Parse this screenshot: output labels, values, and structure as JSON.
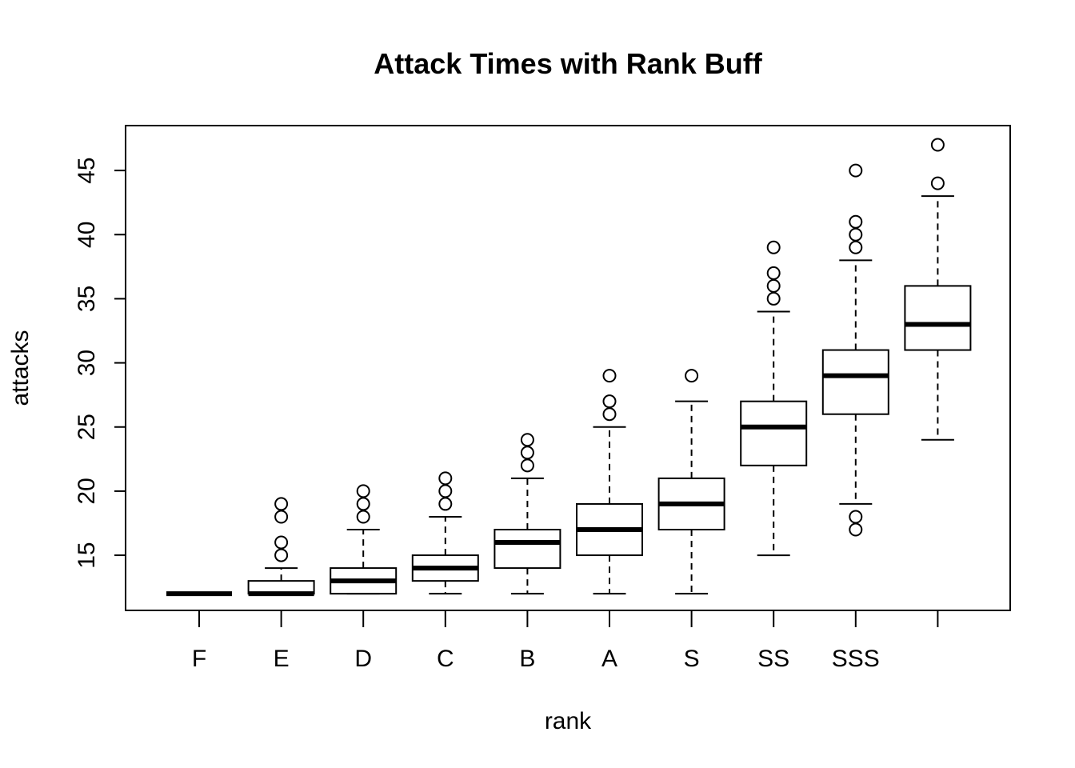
{
  "chart_data": {
    "type": "boxplot",
    "title": "Attack Times with Rank Buff",
    "xlabel": "rank",
    "ylabel": "attacks",
    "categories": [
      "F",
      "E",
      "D",
      "C",
      "B",
      "A",
      "S",
      "SS",
      "SSS",
      ""
    ],
    "y_ticks": [
      15,
      20,
      25,
      30,
      35,
      40,
      45
    ],
    "ylim": [
      10.7,
      48.5
    ],
    "grid": false,
    "boxes": [
      {
        "category": "F",
        "whisker_low": 12,
        "q1": 12,
        "median": 12,
        "q3": 12,
        "whisker_high": 12,
        "outliers": []
      },
      {
        "category": "E",
        "whisker_low": 12,
        "q1": 12,
        "median": 12,
        "q3": 13,
        "whisker_high": 14,
        "outliers": [
          15,
          16,
          18,
          19
        ]
      },
      {
        "category": "D",
        "whisker_low": 12,
        "q1": 12,
        "median": 13,
        "q3": 14,
        "whisker_high": 17,
        "outliers": [
          18,
          19,
          20
        ]
      },
      {
        "category": "C",
        "whisker_low": 12,
        "q1": 13,
        "median": 14,
        "q3": 15,
        "whisker_high": 18,
        "outliers": [
          19,
          20,
          21
        ]
      },
      {
        "category": "B",
        "whisker_low": 12,
        "q1": 14,
        "median": 16,
        "q3": 17,
        "whisker_high": 21,
        "outliers": [
          22,
          23,
          24
        ]
      },
      {
        "category": "A",
        "whisker_low": 12,
        "q1": 15,
        "median": 17,
        "q3": 19,
        "whisker_high": 25,
        "outliers": [
          26,
          27,
          29
        ]
      },
      {
        "category": "S",
        "whisker_low": 12,
        "q1": 17,
        "median": 19,
        "q3": 21,
        "whisker_high": 27,
        "outliers": [
          29
        ]
      },
      {
        "category": "SS",
        "whisker_low": 15,
        "q1": 22,
        "median": 25,
        "q3": 27,
        "whisker_high": 34,
        "outliers": [
          35,
          36,
          37,
          39
        ]
      },
      {
        "category": "SSS",
        "whisker_low": 19,
        "q1": 26,
        "median": 29,
        "q3": 31,
        "whisker_high": 38,
        "outliers": [
          17,
          18,
          39,
          40,
          41,
          45
        ]
      },
      {
        "category": "",
        "whisker_low": 24,
        "q1": 31,
        "median": 33,
        "q3": 36,
        "whisker_high": 43,
        "outliers": [
          44,
          47
        ]
      }
    ]
  }
}
